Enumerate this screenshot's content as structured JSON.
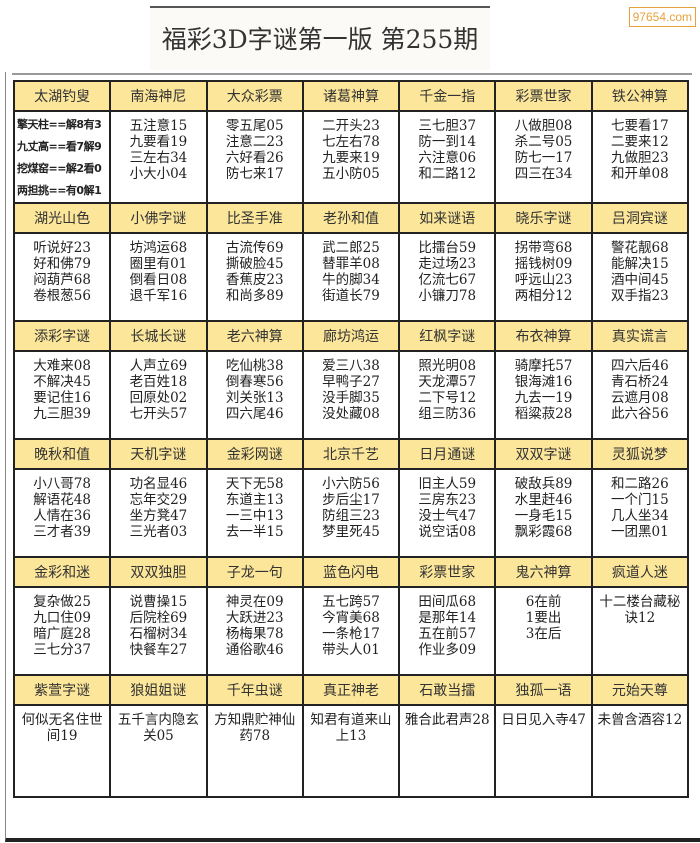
{
  "title": "福彩3D字谜第一版  第255期",
  "watermark": "97654.com",
  "colors": {
    "header_bg": "#fbe69a",
    "border": "#222222",
    "watermark": "#e6a23c"
  },
  "sections": [
    {
      "headers": [
        "太湖钓叟",
        "南海神尼",
        "大众彩票",
        "诸葛神算",
        "千金一指",
        "彩票世家",
        "铁公神算"
      ],
      "cells": [
        [
          "擎天柱==解8有3",
          "九丈高==看7解9",
          "挖煤窑==解2看0",
          "两担挑==有0解1"
        ],
        [
          "五注意15",
          "九要看19",
          "三左右34",
          "小大小04"
        ],
        [
          "零五尾05",
          "注意二23",
          "六好看26",
          "防七来17"
        ],
        [
          "二开头23",
          "七左右78",
          "九要来19",
          "五小防05"
        ],
        [
          "三七胆37",
          "防一到14",
          "六注意06",
          "和二路12"
        ],
        [
          "八做胆08",
          "杀二号05",
          "防七一17",
          "四三在34"
        ],
        [
          "七要看17",
          "二要来12",
          "九做胆23",
          "和开单08"
        ]
      ]
    },
    {
      "headers": [
        "湖光山色",
        "小佛字谜",
        "比圣手准",
        "老孙和值",
        "如来谜语",
        "晓乐字谜",
        "吕洞宾谜"
      ],
      "cells": [
        [
          "听说好23",
          "好和佛79",
          "闷葫芦68",
          "卷根葱56"
        ],
        [
          "坊鸿运68",
          "圈里有01",
          "倒看日08",
          "退千军16"
        ],
        [
          "古流传69",
          "撕破脸45",
          "香蕉皮23",
          "和尚多89"
        ],
        [
          "武二郎25",
          "替罪羊08",
          "牛的脚34",
          "街道长79"
        ],
        [
          "比擂台59",
          "走过场23",
          "亿流七67",
          "小镰刀78"
        ],
        [
          "拐带弯68",
          "摇钱树09",
          "呼远山23",
          "两相分12"
        ],
        [
          "警花靓68",
          "能解决15",
          "酒中间45",
          "双手指23"
        ]
      ]
    },
    {
      "headers": [
        "添彩字谜",
        "长城长谜",
        "老六神算",
        "廊坊鸿运",
        "红枫字谜",
        "布衣神算",
        "真实谎言"
      ],
      "cells": [
        [
          "大难来08",
          "不解决45",
          "要记住16",
          "九三胆39"
        ],
        [
          "人声立69",
          "老百姓18",
          "回原处02",
          "七开头57"
        ],
        [
          "吃仙桃38",
          "倒春寒56",
          "刘关张13",
          "四六尾46"
        ],
        [
          "爱三八38",
          "早鸭子27",
          "没手脚35",
          "没处藏08"
        ],
        [
          "照光明08",
          "天龙潭57",
          "二下号12",
          "组三防36"
        ],
        [
          "骑摩托57",
          "银海滩16",
          "九去一19",
          "稻粱菽28"
        ],
        [
          "四六后46",
          "青石桥24",
          "云遮月08",
          "此六谷56"
        ]
      ]
    },
    {
      "headers": [
        "晚秋和值",
        "天机字谜",
        "金彩网谜",
        "北京千艺",
        "日月通谜",
        "双双字谜",
        "灵狐说梦"
      ],
      "cells": [
        [
          "小八哥78",
          "解语花48",
          "人情在36",
          "三才者39"
        ],
        [
          "功名显46",
          "忘年交29",
          "坐方凳47",
          "三光者03"
        ],
        [
          "天下无58",
          "东道主13",
          "一三中13",
          "去一半15"
        ],
        [
          "小六防56",
          "步后尘17",
          "防组三23",
          "梦里死45"
        ],
        [
          "旧主人59",
          "三房东23",
          "没士气47",
          "说空话08"
        ],
        [
          "破敌兵89",
          "水里赶46",
          "一身毛15",
          "飘彩霞68"
        ],
        [
          "和二路26",
          "一个门15",
          "几人坐34",
          "一团黑01"
        ]
      ]
    },
    {
      "headers": [
        "金彩和迷",
        "双双独胆",
        "子龙一句",
        "蓝色闪电",
        "彩票世家",
        "鬼六神算",
        "疯道人迷"
      ],
      "cells": [
        [
          "复杂做25",
          "九口住09",
          "暗广庭28",
          "三七分37"
        ],
        [
          "说曹操15",
          "后院栓69",
          "石榴树34",
          "快餐车27"
        ],
        [
          "神灵在09",
          "大跃进23",
          "杨梅果78",
          "通俗歌46"
        ],
        [
          "五七跨57",
          "今宵美68",
          "一条枪17",
          "带头人01"
        ],
        [
          "田间瓜68",
          "是那年14",
          "五在前57",
          "作业多09"
        ],
        [
          "6在前",
          "1要出",
          "3在后"
        ],
        [
          "十二楼台藏秘诀12"
        ]
      ]
    },
    {
      "headers": [
        "紫萱字谜",
        "狼姐姐谜",
        "千年虫谜",
        "真正神老",
        "石敢当擂",
        "独孤一语",
        "元始天尊"
      ],
      "cells": [
        [
          "何似无名住世间19"
        ],
        [
          "五千言内隐玄关05"
        ],
        [
          "方知鼎贮神仙药78"
        ],
        [
          "知君有道来山上13"
        ],
        [
          "雅合此君声28"
        ],
        [
          "日日见入寺47"
        ],
        [
          "未曾含酒容12"
        ]
      ]
    }
  ]
}
